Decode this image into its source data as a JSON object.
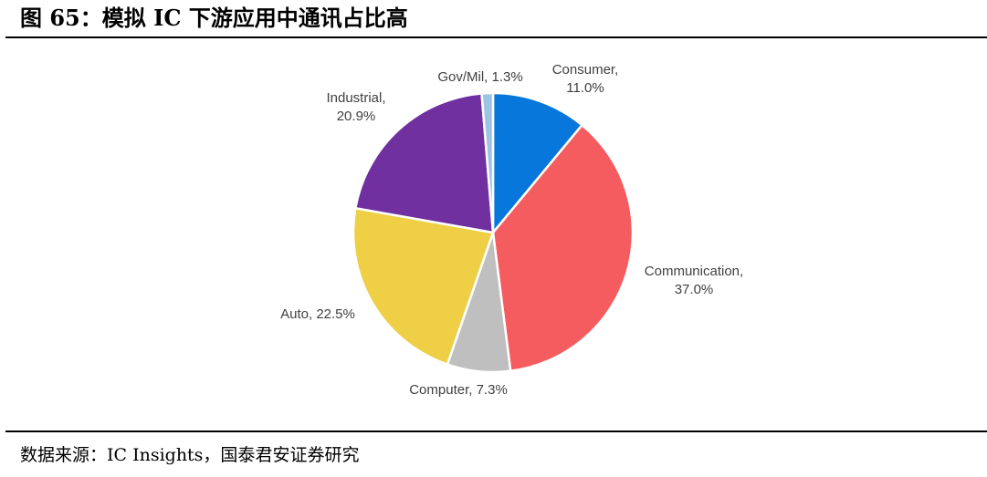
{
  "figure": {
    "title": "图 65：模拟 IC 下游应用中通讯占比高",
    "source": "数据来源：IC Insights，国泰君安证券研究"
  },
  "chart_data": {
    "type": "pie",
    "title": "",
    "start_angle_deg": 0,
    "direction": "clockwise",
    "slices": [
      {
        "name": "Consumer",
        "value": 11.0,
        "value_label": "11.0%",
        "color": "#0777DB"
      },
      {
        "name": "Communication",
        "value": 37.0,
        "value_label": "37.0%",
        "color": "#F55C5F"
      },
      {
        "name": "Computer",
        "value": 7.3,
        "value_label": "7.3%",
        "color": "#BFBFBF"
      },
      {
        "name": "Auto",
        "value": 22.5,
        "value_label": "22.5%",
        "color": "#EECF45"
      },
      {
        "name": "Industrial",
        "value": 20.9,
        "value_label": "20.9%",
        "color": "#7030A0"
      },
      {
        "name": "Gov/Mil",
        "value": 1.3,
        "value_label": "1.3%",
        "color": "#9DC3E6"
      }
    ]
  }
}
